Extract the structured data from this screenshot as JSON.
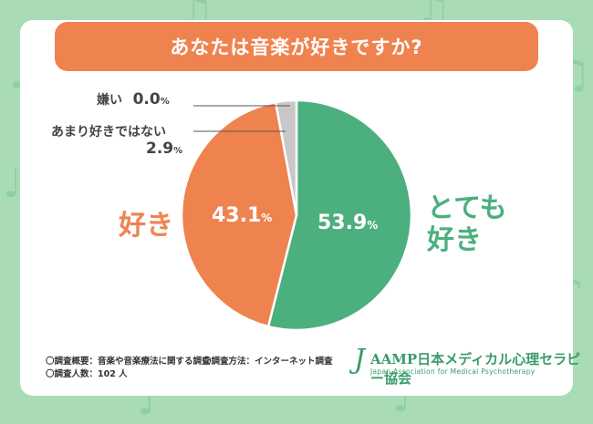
{
  "chart_data": {
    "type": "pie",
    "title": "あなたは音楽が好きですか?",
    "slices": [
      {
        "label": "とても好き",
        "value": 53.9,
        "display": "53.9",
        "color": "#4caf7e"
      },
      {
        "label": "好き",
        "value": 43.1,
        "display": "43.1",
        "color": "#ef8350"
      },
      {
        "label": "あまり好きではない",
        "value": 2.9,
        "display": "2.9",
        "color": "#c8c8c8"
      },
      {
        "label": "嫌い",
        "value": 0.0,
        "display": "0.0",
        "color": "#9e9e9e"
      }
    ],
    "unit": "%"
  },
  "labels": {
    "love_line1": "とても",
    "love_line2": "好き",
    "like": "好き",
    "dislike_name": "嫌い",
    "dislike_value": "0.0",
    "notmuch_name": "あまり好きではない",
    "notmuch_value": "2.9",
    "percent": "%"
  },
  "footer": {
    "line1": "〇調査概要：音楽や音楽療法に関する調査",
    "line1b": "〇調査方法：インターネット調査",
    "line2": "〇調査人数：102 人"
  },
  "logo": {
    "j": "J",
    "main": "AAMP日本メディカル心理セラピー協会",
    "sub": "Japan Association for Medical Psychotherapy"
  },
  "decor": {
    "note1": "♪",
    "note2": "♫",
    "note3": "♩"
  }
}
